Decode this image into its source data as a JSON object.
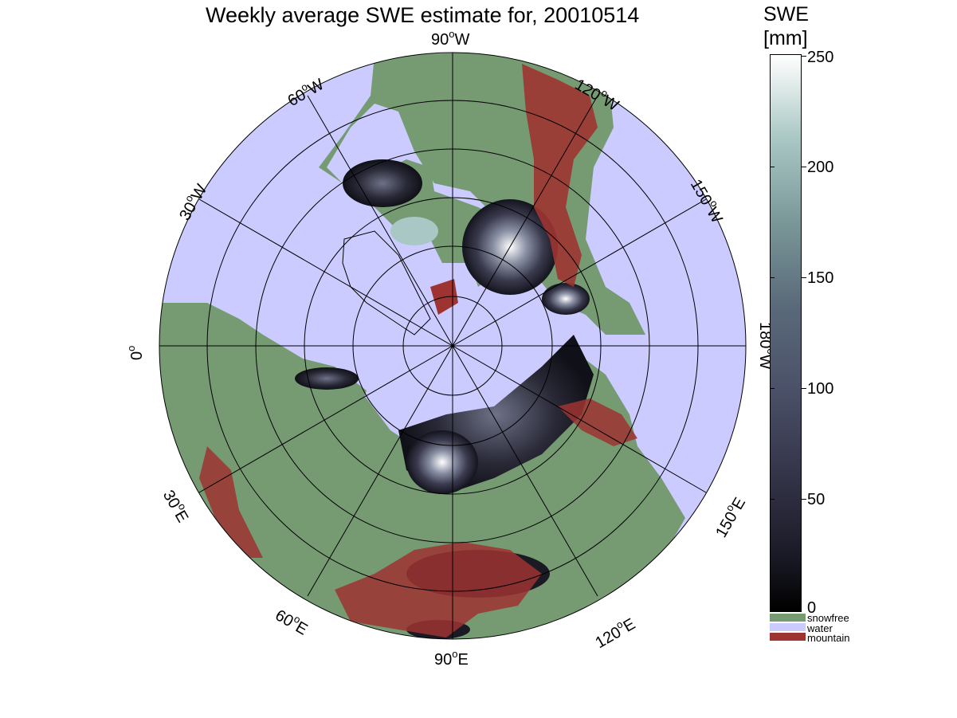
{
  "title": "Weekly average SWE estimate for, 20010514",
  "colors": {
    "water": "#cccbff",
    "snowfree": "#769b73",
    "mountain": "#9e3432",
    "snow_dark": "#14141e",
    "snow_mid": "#55556e",
    "snow_light": "#dcebe9"
  },
  "longitude_labels": [
    {
      "deg": "90",
      "dir": "W"
    },
    {
      "deg": "120",
      "dir": "W"
    },
    {
      "deg": "150",
      "dir": "W"
    },
    {
      "deg": "180",
      "dir": "W"
    },
    {
      "deg": "150",
      "dir": "E"
    },
    {
      "deg": "120",
      "dir": "E"
    },
    {
      "deg": "90",
      "dir": "E"
    },
    {
      "deg": "60",
      "dir": "E"
    },
    {
      "deg": "30",
      "dir": "E"
    },
    {
      "deg": "0",
      "dir": ""
    },
    {
      "deg": "30",
      "dir": "W"
    },
    {
      "deg": "60",
      "dir": "W"
    }
  ],
  "degree_symbol": "o",
  "colorbar": {
    "title_line1": "SWE",
    "title_line2": "[mm]",
    "ticks": [
      "0",
      "50",
      "100",
      "150",
      "200",
      "250"
    ],
    "range": [
      0,
      250
    ]
  },
  "legend": [
    {
      "label": "snowfree",
      "color": "#769b73"
    },
    {
      "label": "water",
      "color": "#cccbff"
    },
    {
      "label": "mountain",
      "color": "#9e3432"
    }
  ]
}
